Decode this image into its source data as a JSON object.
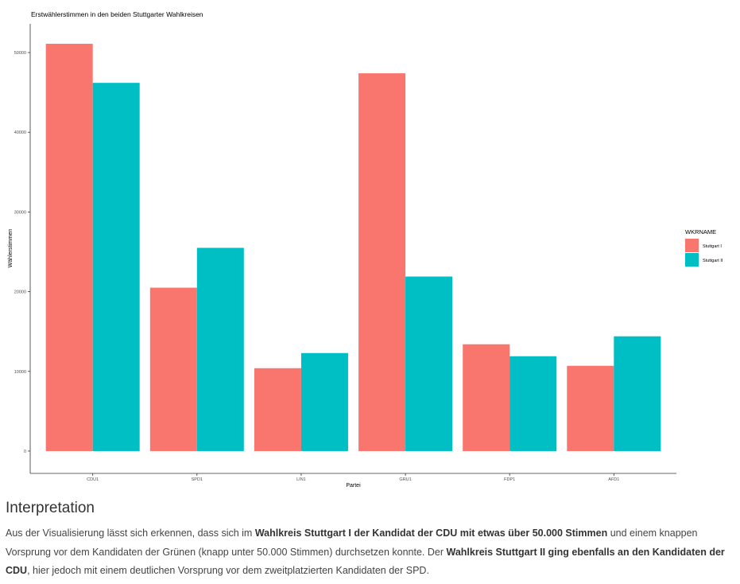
{
  "chart_data": {
    "type": "bar",
    "title": "Erstwählerstimmen in den beiden Stuttgarter Wahlkreisen",
    "xlabel": "Partei",
    "ylabel": "Wählerstimmen",
    "categories": [
      "CDU1",
      "SPD1",
      "LIN1",
      "GRU1",
      "FDP1",
      "AFD1"
    ],
    "series": [
      {
        "name": "Stuttgart I",
        "color": "#F8766D",
        "values": [
          51100,
          20500,
          10400,
          47400,
          13400,
          10700
        ]
      },
      {
        "name": "Stuttgart II",
        "color": "#00BFC4",
        "values": [
          46200,
          25500,
          12300,
          21900,
          11900,
          14400
        ]
      }
    ],
    "ylim": [
      -2800,
      53600
    ],
    "yticks": [
      0,
      10000,
      20000,
      30000,
      40000,
      50000
    ],
    "grid": false,
    "legend": {
      "title": "WKRNAME",
      "placement": "right"
    }
  },
  "article": {
    "heading": "Interpretation",
    "p1": "Aus der Visualisierung lässt sich erkennen, dass sich im ",
    "b1": "Wahlkreis Stuttgart I der Kandidat der CDU mit etwas über 50.000 Stimmen",
    "p2": " und einem knappen Vorsprung vor dem Kandidaten der Grünen (knapp unter 50.000 Stimmen) durchsetzen konnte. Der ",
    "b2": "Wahlkreis Stuttgart II ging ebenfalls an den Kandidaten der CDU",
    "p3": ", hier jedoch mit einem deutlichen Vorsprung vor dem zweitplatzierten Kandidaten der SPD."
  }
}
